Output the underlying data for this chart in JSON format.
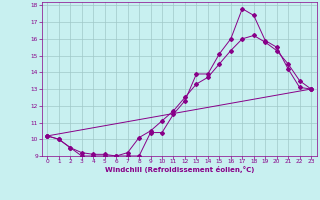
{
  "xlabel": "Windchill (Refroidissement éolien,°C)",
  "bg_color": "#c8f0f0",
  "grid_color": "#a0c8c8",
  "line_color": "#880088",
  "xlim": [
    -0.5,
    23.5
  ],
  "ylim": [
    9,
    18.2
  ],
  "xticks": [
    0,
    1,
    2,
    3,
    4,
    5,
    6,
    7,
    8,
    9,
    10,
    11,
    12,
    13,
    14,
    15,
    16,
    17,
    18,
    19,
    20,
    21,
    22,
    23
  ],
  "yticks": [
    9,
    10,
    11,
    12,
    13,
    14,
    15,
    16,
    17,
    18
  ],
  "line1_x": [
    0,
    1,
    2,
    3,
    4,
    5,
    6,
    7,
    8,
    9,
    10,
    11,
    12,
    13,
    14,
    15,
    16,
    17,
    18,
    19,
    20,
    21,
    22,
    23
  ],
  "line1_y": [
    10.2,
    10.0,
    9.5,
    9.0,
    9.0,
    9.0,
    9.0,
    9.0,
    9.0,
    10.4,
    10.4,
    11.5,
    12.3,
    13.9,
    13.9,
    15.1,
    16.0,
    17.8,
    17.4,
    15.9,
    15.5,
    14.2,
    13.1,
    13.0
  ],
  "line2_x": [
    0,
    1,
    2,
    3,
    4,
    5,
    6,
    7,
    8,
    9,
    10,
    11,
    12,
    13,
    14,
    15,
    16,
    17,
    18,
    19,
    20,
    21,
    22,
    23
  ],
  "line2_y": [
    10.2,
    10.0,
    9.5,
    9.2,
    9.1,
    9.1,
    9.0,
    9.2,
    10.1,
    10.5,
    11.1,
    11.7,
    12.5,
    13.3,
    13.7,
    14.5,
    15.3,
    16.0,
    16.2,
    15.8,
    15.3,
    14.5,
    13.5,
    13.0
  ],
  "line3_x": [
    0,
    23
  ],
  "line3_y": [
    10.2,
    13.0
  ]
}
